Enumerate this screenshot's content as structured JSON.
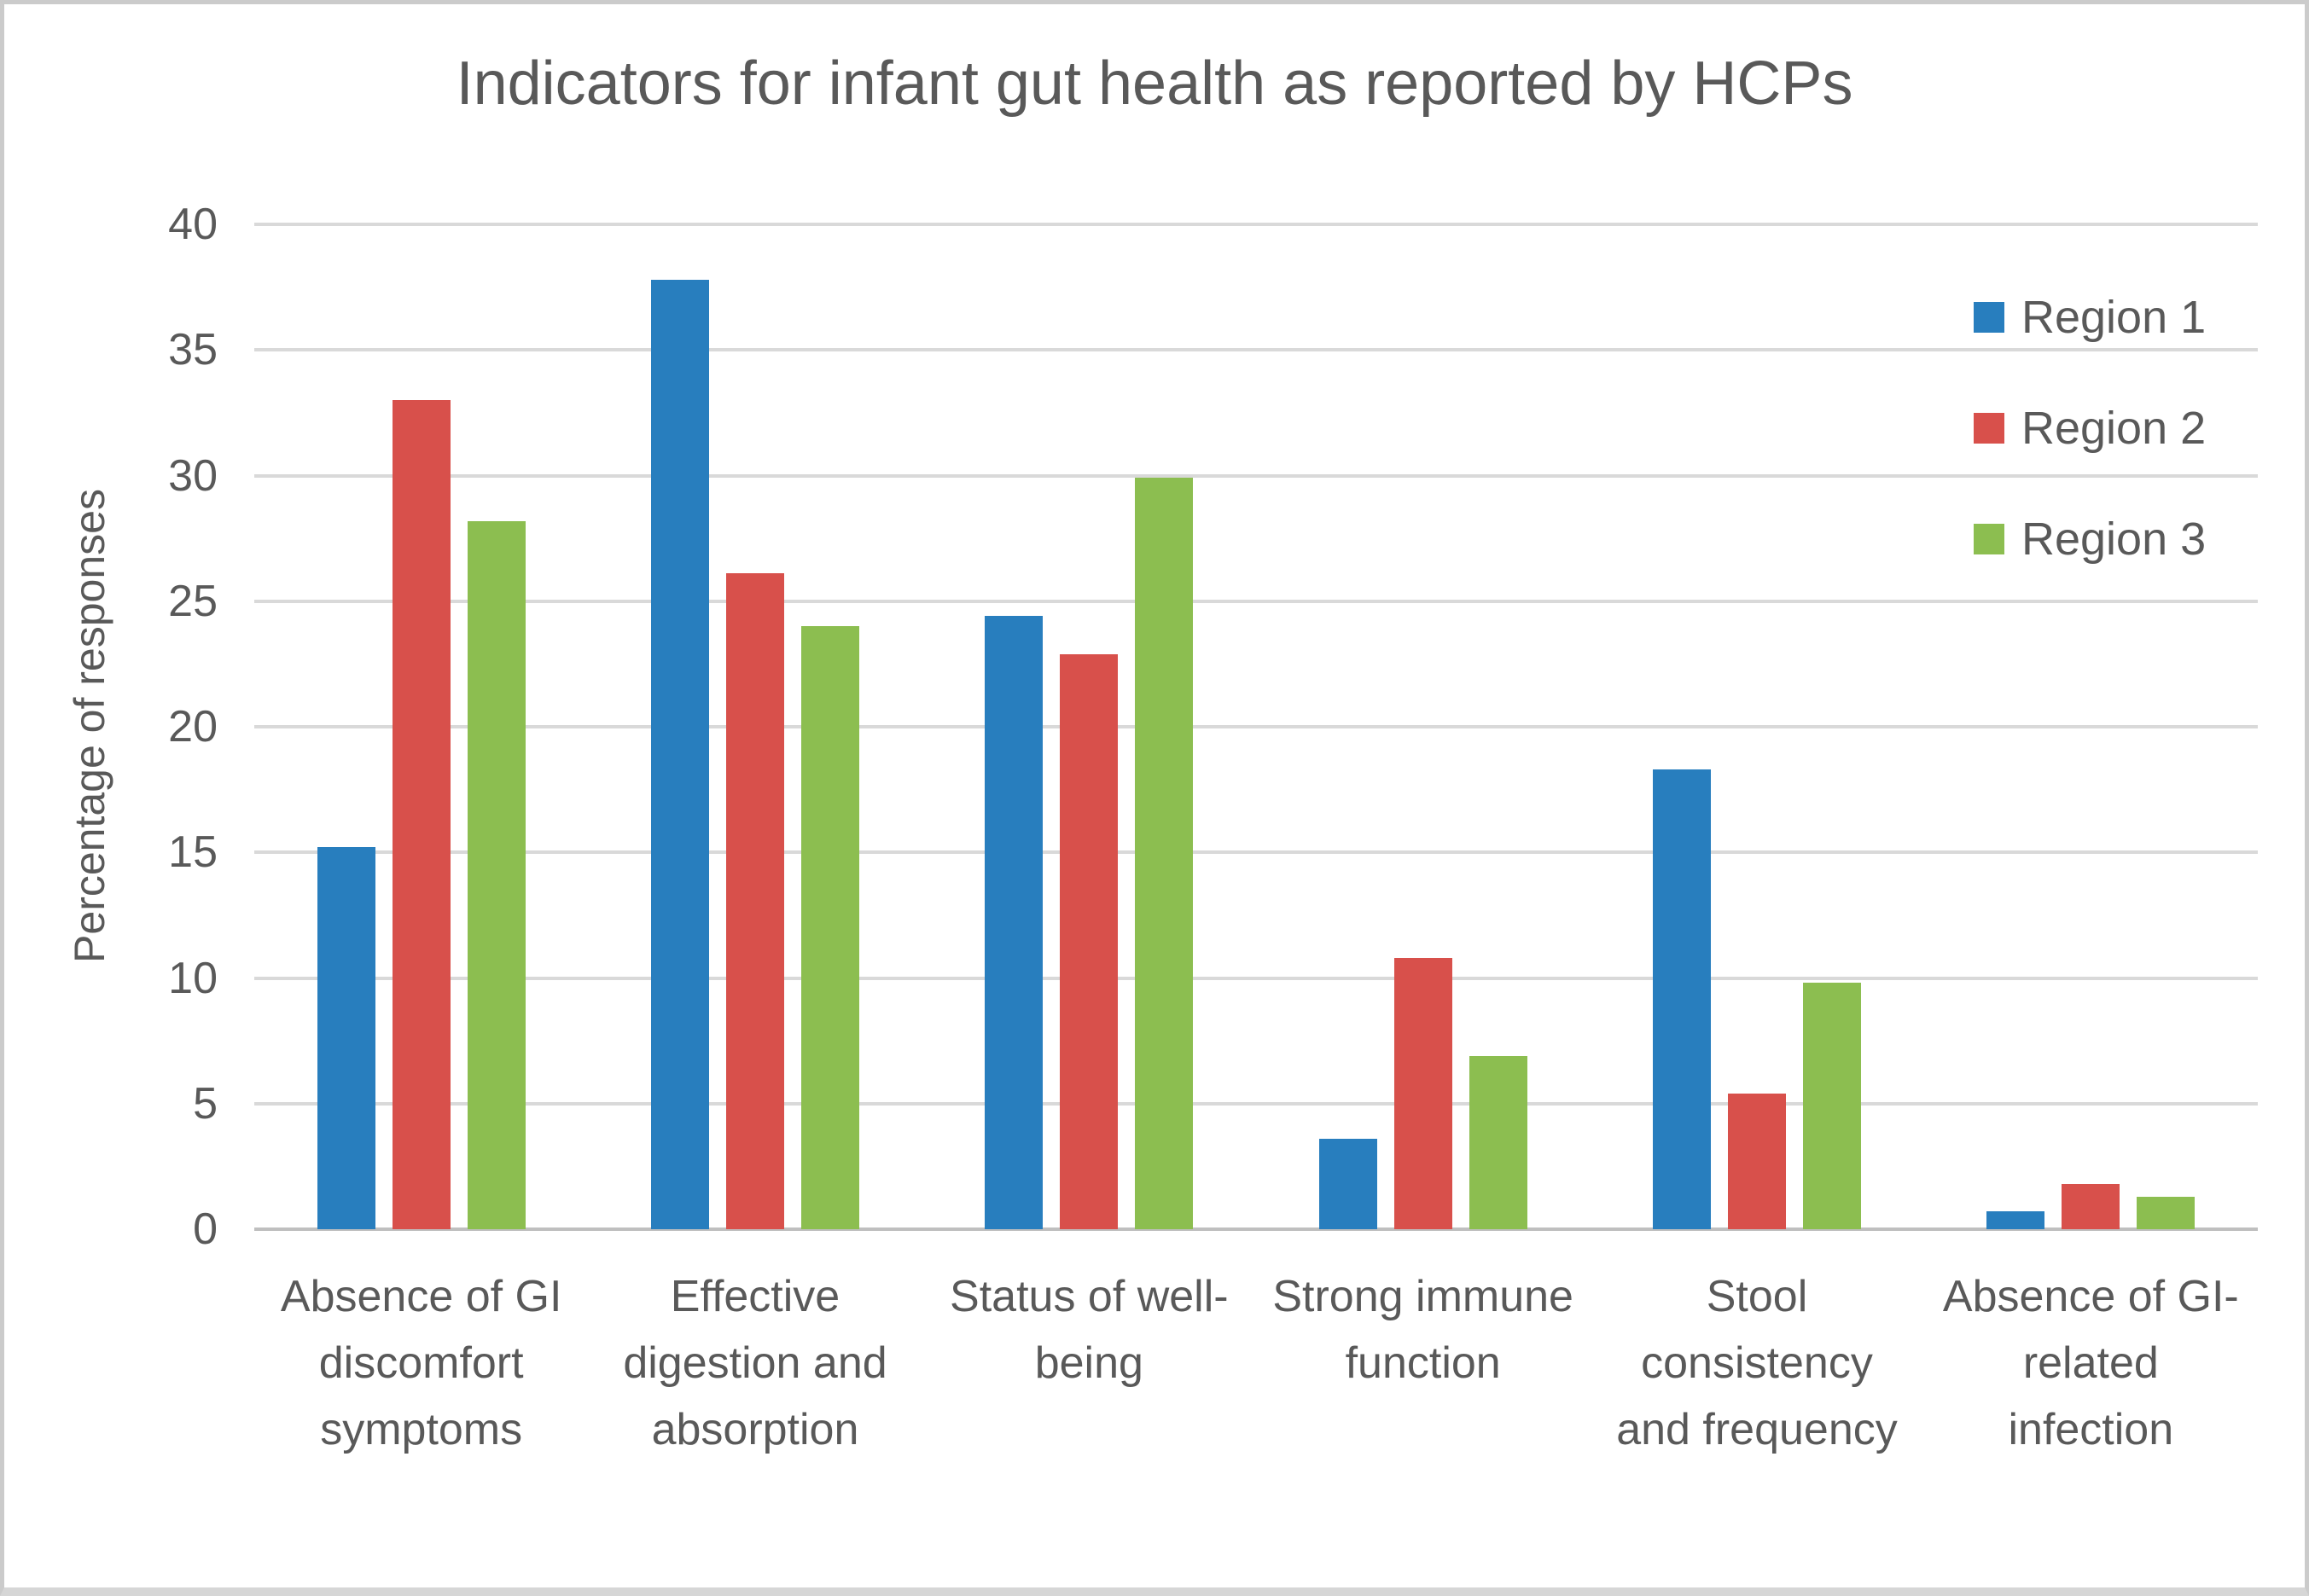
{
  "chart_data": {
    "type": "bar",
    "title": "Indicators for infant gut health as reported by HCPs",
    "xlabel": "",
    "ylabel": "Percentage of responses",
    "ylim": [
      0,
      40
    ],
    "yticks": [
      0,
      5,
      10,
      15,
      20,
      25,
      30,
      35,
      40
    ],
    "grid": true,
    "legend_position": "upper-right-inside",
    "categories": [
      "Absence of GI discomfort symptoms",
      "Effective digestion and absorption",
      "Status of well-being",
      "Strong immune function",
      "Stool consistency and frequency",
      "Absence of GI-related infection"
    ],
    "category_lines": [
      [
        "Absence of GI",
        "discomfort",
        "symptoms"
      ],
      [
        "Effective",
        "digestion and",
        "absorption"
      ],
      [
        "Status of well-",
        "being"
      ],
      [
        "Strong immune",
        "function"
      ],
      [
        "Stool",
        "consistency",
        "and frequency"
      ],
      [
        "Absence of GI-",
        "related",
        "infection"
      ]
    ],
    "series": [
      {
        "name": "Region 1",
        "color": "#287EBE",
        "values": [
          15.2,
          37.8,
          24.4,
          3.6,
          18.3,
          0.7
        ]
      },
      {
        "name": "Region 2",
        "color": "#D8504B",
        "values": [
          33.0,
          26.1,
          22.9,
          10.8,
          5.4,
          1.8
        ]
      },
      {
        "name": "Region 3",
        "color": "#8CBE50",
        "values": [
          28.2,
          24.0,
          29.9,
          6.9,
          9.8,
          1.3
        ]
      }
    ]
  },
  "colors": {
    "background": "#FFFFFF",
    "border": "#CBCBCB",
    "gridline": "#D9D9D9",
    "axis_line": "#BFBFBF",
    "text": "#595959"
  }
}
